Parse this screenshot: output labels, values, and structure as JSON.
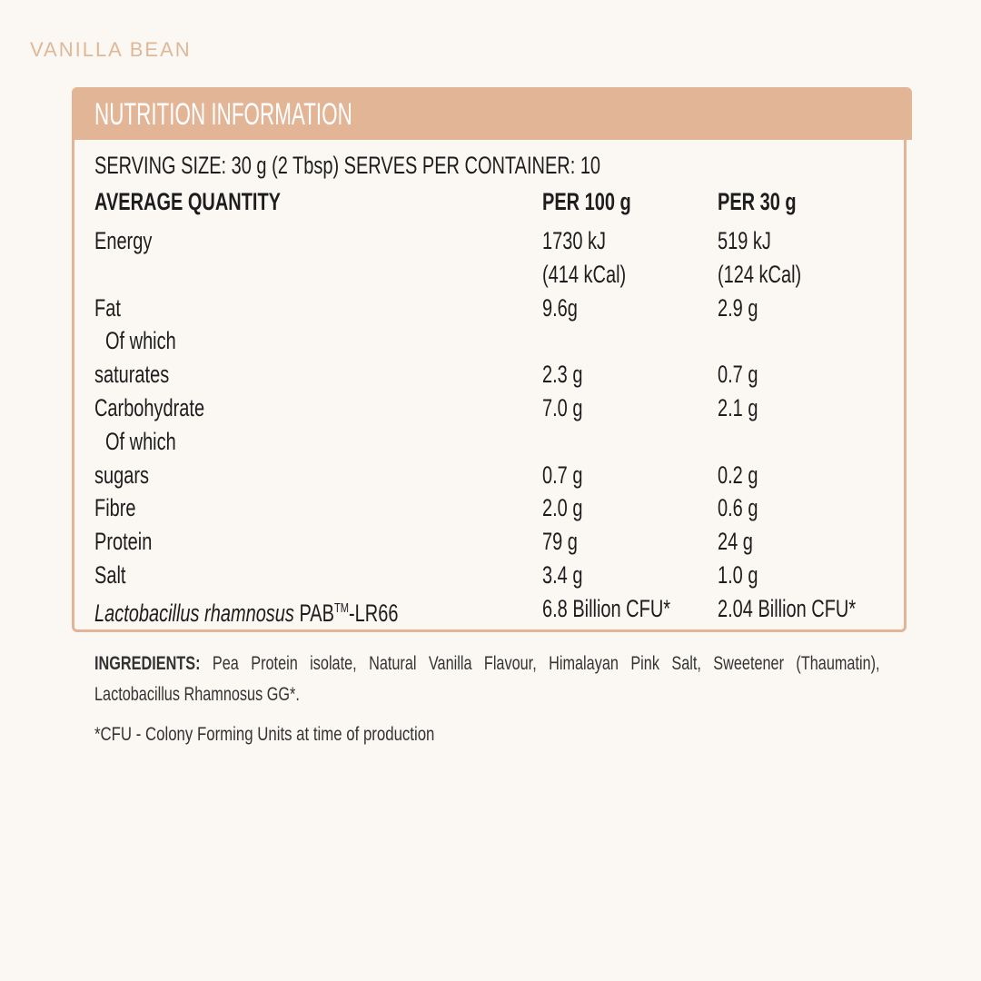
{
  "product": "VANILLA BEAN",
  "panel": {
    "title": "NUTRITION INFORMATION",
    "serving": "SERVING SIZE: 30 g (2 Tbsp)  SERVES PER CONTAINER: 10",
    "columns": [
      "AVERAGE QUANTITY",
      "PER 100 g",
      "PER 30 g"
    ],
    "rows": [
      {
        "label": "Energy",
        "per_100g": [
          "1730 kJ",
          "(414 kCal)"
        ],
        "per_30g": [
          "519 kJ",
          "(124 kCal)"
        ]
      },
      {
        "label": "Fat",
        "per_100g": [
          "9.6g"
        ],
        "per_30g": [
          "2.9 g"
        ]
      },
      {
        "label": "Of which",
        "indent": true
      },
      {
        "label": "saturates",
        "per_100g": [
          "2.3 g"
        ],
        "per_30g": [
          "0.7 g"
        ]
      },
      {
        "label": "Carbohydrate",
        "per_100g": [
          "7.0 g"
        ],
        "per_30g": [
          "2.1 g"
        ]
      },
      {
        "label": "Of which",
        "indent": true
      },
      {
        "label": "sugars",
        "per_100g": [
          "0.7 g"
        ],
        "per_30g": [
          "0.2 g"
        ]
      },
      {
        "label": "Fibre",
        "per_100g": [
          "2.0 g"
        ],
        "per_30g": [
          "0.6 g"
        ]
      },
      {
        "label": "Protein",
        "per_100g": [
          "79 g"
        ],
        "per_30g": [
          "24 g"
        ]
      },
      {
        "label": "Salt",
        "per_100g": [
          "3.4 g"
        ],
        "per_30g": [
          "1.0 g"
        ]
      },
      {
        "label_parts": {
          "italic": "Lactobacillus rhamnosus",
          "name": "PAB",
          "superscript": "TM",
          "suffix": "-LR66"
        },
        "per_100g": [
          "6.8 Billion CFU*"
        ],
        "per_30g": [
          "2.04 Billion CFU*"
        ]
      }
    ]
  },
  "ingredients": {
    "heading": "INGREDIENTS:",
    "text": "Pea Protein isolate, Natural Vanilla Flavour, Himalayan Pink Salt, Sweetener (Thaumatin), Lactobacillus Rhamnosus GG*."
  },
  "footnote": "*CFU - Colony Forming Units at time of production"
}
